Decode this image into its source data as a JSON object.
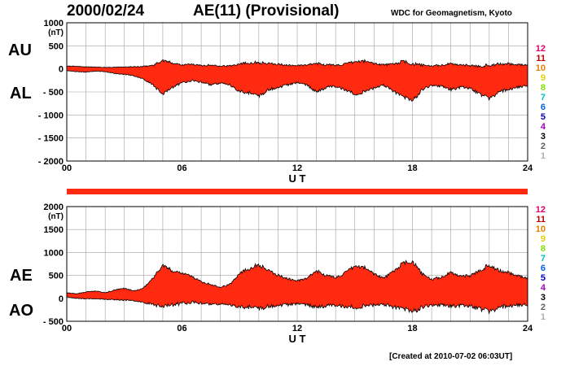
{
  "header": {
    "date": "2000/02/24",
    "title": "AE(11) (Provisional)",
    "org": "WDC for Geomagnetism, Kyoto"
  },
  "footer": {
    "created": "[Created at 2010-07-02 06:03UT]"
  },
  "side_labels": {
    "top": [
      "AU",
      "AL"
    ],
    "bottom": [
      "AE",
      "AO"
    ]
  },
  "legend": {
    "items": [
      "12",
      "11",
      "10",
      "9",
      "8",
      "7",
      "6",
      "5",
      "4",
      "3",
      "2",
      "1"
    ],
    "colors": [
      "#e0006c",
      "#c00000",
      "#e08000",
      "#e0d000",
      "#80e000",
      "#00c0c0",
      "#0060e0",
      "#0000c0",
      "#a000c0",
      "#000000",
      "#606060",
      "#b0b0b0"
    ]
  },
  "colors": {
    "fill": "#ff2a10",
    "outline": "#000000",
    "grid": "#a0a0a0"
  },
  "chart_data": [
    {
      "type": "area",
      "series": [
        {
          "name": "AU"
        },
        {
          "name": "AL"
        }
      ],
      "y_unit": "(nT)",
      "xlabel": "U T",
      "ylim": [
        -2000,
        1000
      ],
      "yticks": [
        "1000",
        "500",
        "0",
        "- 500",
        "- 1000",
        "- 1500",
        "- 2000"
      ],
      "xticks": [
        "00",
        "06",
        "12",
        "18",
        "24"
      ],
      "x": [
        0,
        0.5,
        1,
        1.5,
        2,
        2.5,
        3,
        3.5,
        4,
        4.5,
        5,
        5.5,
        6,
        6.5,
        7,
        7.5,
        8,
        8.5,
        9,
        9.5,
        10,
        10.5,
        11,
        11.5,
        12,
        12.5,
        13,
        13.5,
        14,
        14.5,
        15,
        15.5,
        16,
        16.5,
        17,
        17.5,
        18,
        18.5,
        19,
        19.5,
        20,
        20.5,
        21,
        21.5,
        22,
        22.5,
        23,
        23.5,
        24
      ],
      "upper": [
        60,
        55,
        45,
        40,
        30,
        35,
        40,
        45,
        50,
        80,
        180,
        130,
        90,
        100,
        70,
        80,
        70,
        60,
        120,
        130,
        140,
        110,
        100,
        80,
        70,
        80,
        120,
        90,
        80,
        100,
        150,
        170,
        120,
        90,
        100,
        160,
        110,
        80,
        60,
        80,
        110,
        90,
        70,
        60,
        80,
        100,
        110,
        90,
        80
      ],
      "lower": [
        -40,
        -60,
        -70,
        -50,
        -60,
        -100,
        -120,
        -150,
        -220,
        -350,
        -550,
        -400,
        -300,
        -250,
        -280,
        -350,
        -300,
        -350,
        -500,
        -520,
        -600,
        -450,
        -400,
        -350,
        -300,
        -350,
        -500,
        -400,
        -380,
        -450,
        -550,
        -500,
        -420,
        -350,
        -480,
        -600,
        -700,
        -450,
        -350,
        -380,
        -450,
        -400,
        -420,
        -550,
        -650,
        -500,
        -450,
        -400,
        -350
      ]
    },
    {
      "type": "area",
      "series": [
        {
          "name": "AE"
        },
        {
          "name": "AO"
        }
      ],
      "y_unit": "(nT)",
      "xlabel": "U T",
      "ylim": [
        -500,
        2000
      ],
      "yticks": [
        "2000",
        "1500",
        "1000",
        "500",
        "0",
        "- 500"
      ],
      "xticks": [
        "00",
        "06",
        "12",
        "18",
        "24"
      ],
      "x": [
        0,
        0.5,
        1,
        1.5,
        2,
        2.5,
        3,
        3.5,
        4,
        4.5,
        5,
        5.5,
        6,
        6.5,
        7,
        7.5,
        8,
        8.5,
        9,
        9.5,
        10,
        10.5,
        11,
        11.5,
        12,
        12.5,
        13,
        13.5,
        14,
        14.5,
        15,
        15.5,
        16,
        16.5,
        17,
        17.5,
        18,
        18.5,
        19,
        19.5,
        20,
        20.5,
        21,
        21.5,
        22,
        22.5,
        23,
        23.5,
        24
      ],
      "upper": [
        120,
        100,
        140,
        160,
        120,
        180,
        220,
        160,
        220,
        450,
        720,
        600,
        560,
        480,
        360,
        300,
        250,
        300,
        560,
        650,
        740,
        600,
        500,
        430,
        380,
        430,
        600,
        500,
        450,
        550,
        700,
        670,
        540,
        440,
        580,
        760,
        810,
        530,
        410,
        460,
        560,
        490,
        490,
        610,
        730,
        600,
        560,
        490,
        430
      ],
      "lower": [
        30,
        0,
        -10,
        -10,
        -20,
        -30,
        -40,
        -50,
        -90,
        -130,
        -180,
        -140,
        -110,
        -80,
        -100,
        -130,
        -120,
        -140,
        -200,
        -190,
        -230,
        -170,
        -150,
        -140,
        -120,
        -140,
        -190,
        -160,
        -150,
        -180,
        -200,
        -170,
        -150,
        -130,
        -190,
        -220,
        -300,
        -190,
        -140,
        -150,
        -170,
        -160,
        -170,
        -230,
        -290,
        -200,
        -170,
        -150,
        -130
      ]
    }
  ]
}
